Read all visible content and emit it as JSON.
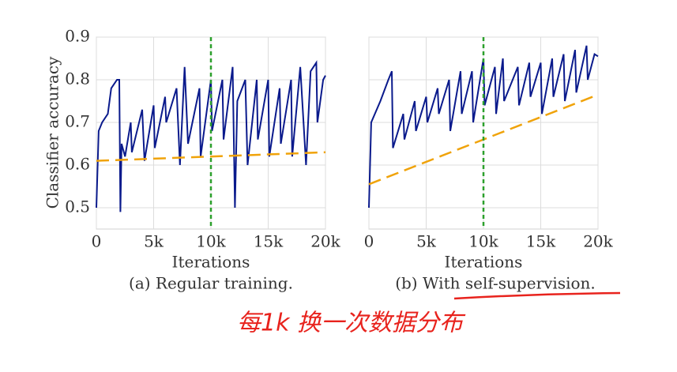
{
  "charts_note_free": true,
  "annotation": "每1k 换一次数据分布",
  "chart_data": [
    {
      "type": "line",
      "ylabel": "Classifier accuracy",
      "xlabel": "Iterations",
      "caption": "(a) Regular training.",
      "xlim": [
        0,
        20000
      ],
      "ylim": [
        0.45,
        0.9
      ],
      "xticks": [
        0,
        {
          "value": 5000,
          "label": "5k"
        },
        {
          "value": 10000,
          "label": "10k"
        },
        {
          "value": 15000,
          "label": "15k"
        },
        {
          "value": 20000,
          "label": "20k"
        }
      ],
      "yticks": [
        0.5,
        0.6,
        0.7,
        0.8,
        0.9
      ],
      "ytick_labels": true,
      "grid": true,
      "vline": 10000,
      "vline_color": "#2ca02c",
      "series": [
        {
          "color": "#0a1a8c",
          "dash": false,
          "x": [
            0,
            200,
            500,
            1000,
            1300,
            1800,
            2000,
            2100,
            2200,
            2500,
            3000,
            3100,
            4000,
            4200,
            5000,
            5100,
            6000,
            6100,
            7000,
            7300,
            7700,
            8000,
            9000,
            9100,
            10000,
            10100,
            11000,
            11100,
            11900,
            12100,
            12300,
            13000,
            13200,
            14000,
            14100,
            15000,
            15100,
            16000,
            16100,
            17000,
            17100,
            17800,
            18300,
            18700,
            19200,
            19300,
            19800,
            20000
          ],
          "values": [
            0.5,
            0.68,
            0.7,
            0.72,
            0.78,
            0.8,
            0.8,
            0.49,
            0.65,
            0.62,
            0.7,
            0.63,
            0.73,
            0.61,
            0.74,
            0.64,
            0.76,
            0.7,
            0.78,
            0.6,
            0.83,
            0.65,
            0.78,
            0.62,
            0.8,
            0.68,
            0.8,
            0.66,
            0.83,
            0.5,
            0.75,
            0.8,
            0.6,
            0.8,
            0.66,
            0.8,
            0.62,
            0.78,
            0.65,
            0.8,
            0.62,
            0.83,
            0.6,
            0.82,
            0.84,
            0.7,
            0.8,
            0.81
          ]
        },
        {
          "color": "#f0a30a",
          "dash": true,
          "x": [
            0,
            20000
          ],
          "values": [
            0.61,
            0.63
          ]
        }
      ]
    },
    {
      "type": "line",
      "xlabel": "Iterations",
      "caption": "(b) With self-supervision.",
      "xlim": [
        0,
        20000
      ],
      "ylim": [
        0.45,
        0.9
      ],
      "xticks": [
        0,
        {
          "value": 5000,
          "label": "5k"
        },
        {
          "value": 10000,
          "label": "10k"
        },
        {
          "value": 15000,
          "label": "15k"
        },
        {
          "value": 20000,
          "label": "20k"
        }
      ],
      "yticks": [
        0.5,
        0.6,
        0.7,
        0.8,
        0.9
      ],
      "ytick_labels": false,
      "grid": true,
      "vline": 10000,
      "vline_color": "#2ca02c",
      "series": [
        {
          "color": "#0a1a8c",
          "dash": false,
          "x": [
            0,
            200,
            1000,
            1700,
            2000,
            2100,
            3000,
            3100,
            4000,
            4100,
            5000,
            5100,
            6000,
            6100,
            7000,
            7100,
            8000,
            8100,
            9000,
            9100,
            10000,
            10100,
            11000,
            11100,
            11700,
            11800,
            13000,
            13100,
            14000,
            14100,
            15000,
            15100,
            16000,
            16100,
            17000,
            17100,
            18000,
            18100,
            19000,
            19100,
            19700,
            20000
          ],
          "values": [
            0.5,
            0.7,
            0.75,
            0.8,
            0.82,
            0.64,
            0.72,
            0.66,
            0.75,
            0.68,
            0.76,
            0.7,
            0.78,
            0.72,
            0.8,
            0.68,
            0.82,
            0.72,
            0.82,
            0.7,
            0.85,
            0.74,
            0.83,
            0.72,
            0.85,
            0.75,
            0.83,
            0.74,
            0.84,
            0.76,
            0.84,
            0.72,
            0.85,
            0.76,
            0.86,
            0.75,
            0.87,
            0.77,
            0.88,
            0.8,
            0.86,
            0.855
          ]
        },
        {
          "color": "#f0a30a",
          "dash": true,
          "x": [
            0,
            20000
          ],
          "values": [
            0.555,
            0.765
          ]
        }
      ]
    }
  ]
}
